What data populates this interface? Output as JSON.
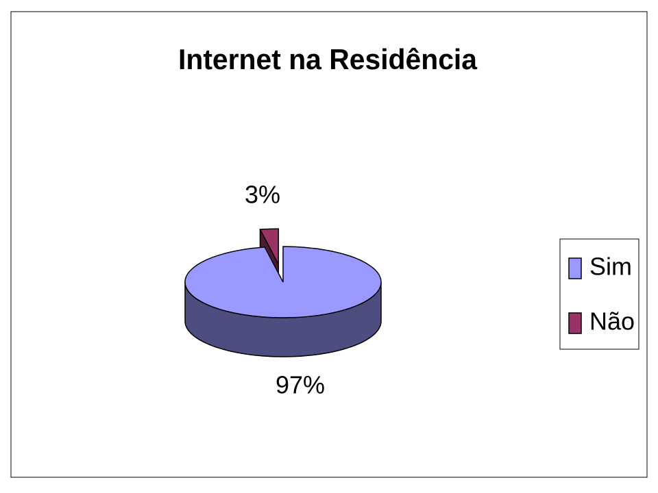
{
  "chart_data": {
    "type": "pie",
    "title": "Internet na Residência",
    "categories": [
      "Sim",
      "Não"
    ],
    "values": [
      97,
      3
    ],
    "value_labels": [
      "97%",
      "3%"
    ],
    "colors": [
      "#9999ff",
      "#993366"
    ],
    "legend": "right"
  }
}
